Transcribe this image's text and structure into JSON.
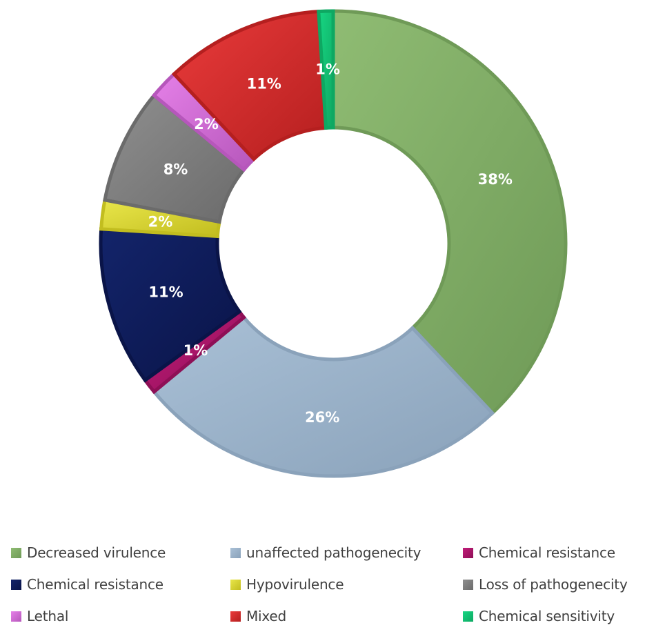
{
  "chart_data": {
    "type": "pie",
    "subtype": "donut",
    "slices": [
      {
        "name": "Decreased virulence",
        "value": 38,
        "label": "38%",
        "color": "#8fbc73",
        "dark": "#6f9a57"
      },
      {
        "name": "unaffected pathogenecity",
        "value": 26,
        "label": "26%",
        "color": "#a9c0d6",
        "dark": "#8aa2ba"
      },
      {
        "name": "Chemical resistance",
        "value": 1,
        "label": "1%",
        "color": "#c21c7a",
        "dark": "#8e0f56"
      },
      {
        "name": "Chemical resistance",
        "value": 11,
        "label": "11%",
        "color": "#13246a",
        "dark": "#0a1448"
      },
      {
        "name": "Hypovirulence",
        "value": 2,
        "label": "2%",
        "color": "#e9e64a",
        "dark": "#c2bd1f"
      },
      {
        "name": "Loss of pathogenecity",
        "value": 8,
        "label": "8%",
        "color": "#8f8f8f",
        "dark": "#6b6b6b"
      },
      {
        "name": "Lethal",
        "value": 2,
        "label": "2%",
        "color": "#e580e8",
        "dark": "#b657bb"
      },
      {
        "name": "Mixed",
        "value": 11,
        "label": "11%",
        "color": "#ea3b3b",
        "dark": "#b51f1f"
      },
      {
        "name": "Chemical sensitivity",
        "value": 1,
        "label": "1%",
        "color": "#17d683",
        "dark": "#0ea862"
      }
    ],
    "start_angle_deg": 0,
    "direction": "clockwise",
    "legend_position": "bottom"
  },
  "legend": {
    "rows": [
      [
        {
          "label": "Decreased virulence",
          "color": "#8fbc73"
        },
        {
          "label": "unaffected pathogenecity",
          "color": "#a9c0d6"
        },
        {
          "label": "Chemical resistance",
          "color": "#c21c7a"
        }
      ],
      [
        {
          "label": "Chemical resistance",
          "color": "#13246a"
        },
        {
          "label": "Hypovirulence",
          "color": "#e9e64a"
        },
        {
          "label": "Loss of pathogenecity",
          "color": "#8f8f8f"
        }
      ],
      [
        {
          "label": "Lethal",
          "color": "#e580e8"
        },
        {
          "label": "Mixed",
          "color": "#ea3b3b"
        },
        {
          "label": "Chemical sensitivity",
          "color": "#17d683"
        }
      ]
    ]
  }
}
